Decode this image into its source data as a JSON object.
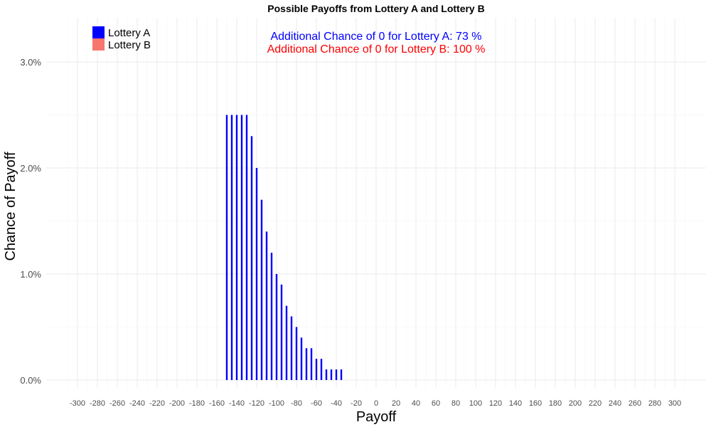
{
  "chart_data": {
    "type": "bar",
    "title": "Possible Payoffs from Lottery A and Lottery B",
    "xlabel": "Payoff",
    "ylabel": "Chance of Payoff",
    "xlim": [
      -310,
      310
    ],
    "ylim": [
      0,
      3.2
    ],
    "grid": true,
    "legend_position": "top-left",
    "x_ticks": [
      -300,
      -280,
      -260,
      -240,
      -220,
      -200,
      -180,
      -160,
      -140,
      -120,
      -100,
      -80,
      -60,
      -40,
      -20,
      0,
      20,
      40,
      60,
      80,
      100,
      120,
      140,
      160,
      180,
      200,
      220,
      240,
      260,
      280,
      300
    ],
    "y_ticks": [
      {
        "value": 0,
        "label": "0.0%"
      },
      {
        "value": 1,
        "label": "1.0%"
      },
      {
        "value": 2,
        "label": "2.0%"
      },
      {
        "value": 3,
        "label": "3.0%"
      }
    ],
    "series": [
      {
        "name": "Lottery A",
        "color": "#0000ff",
        "x": [
          -150,
          -145,
          -140,
          -135,
          -130,
          -125,
          -120,
          -115,
          -110,
          -105,
          -100,
          -95,
          -90,
          -85,
          -80,
          -75,
          -70,
          -65,
          -60,
          -55,
          -50,
          -45,
          -40,
          -35
        ],
        "values": [
          2.5,
          2.5,
          2.5,
          2.5,
          2.5,
          2.3,
          2.0,
          1.7,
          1.4,
          1.2,
          1.0,
          0.9,
          0.7,
          0.6,
          0.5,
          0.4,
          0.3,
          0.3,
          0.2,
          0.2,
          0.1,
          0.1,
          0.1,
          0.1
        ]
      },
      {
        "name": "Lottery B",
        "color": "#f8766d",
        "x": [],
        "values": []
      }
    ],
    "annotations": [
      {
        "text": "Additional Chance of 0 for Lottery A:  73 %",
        "color": "#0000ff"
      },
      {
        "text": "Additional Chance of 0 for Lottery B:  100 %",
        "color": "#ff0000"
      }
    ]
  }
}
